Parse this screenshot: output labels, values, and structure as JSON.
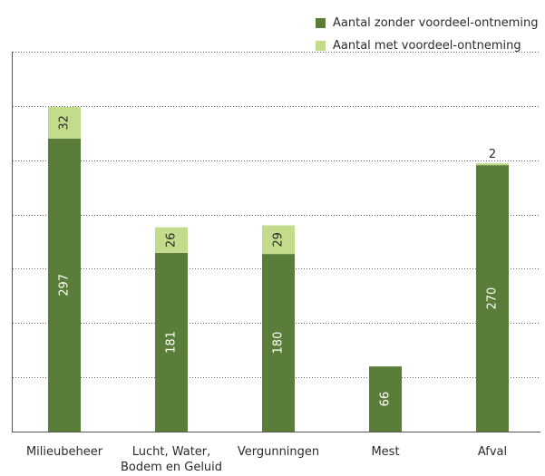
{
  "chart_data": {
    "type": "bar",
    "stacked": true,
    "categories": [
      "Milieubeheer",
      "Lucht, Water, Bodem en Geluid",
      "Vergunningen",
      "Mest",
      "Afval"
    ],
    "category_lines": [
      [
        "Milieubeheer"
      ],
      [
        "Lucht, Water,",
        "Bodem en Geluid"
      ],
      [
        "Vergunningen"
      ],
      [
        "Mest"
      ],
      [
        "Afval"
      ]
    ],
    "series": [
      {
        "name": "Aantal zonder voordeel-ontneming",
        "color": "#5b7d3a",
        "values": [
          297,
          181,
          180,
          66,
          270
        ]
      },
      {
        "name": "Aantal met voordeel-ontneming",
        "color": "#c2dc8c",
        "values": [
          32,
          26,
          29,
          0,
          2
        ]
      }
    ],
    "value_labels": [
      [
        "297",
        "181",
        "180",
        "66",
        "270"
      ],
      [
        "32",
        "26",
        "29",
        "",
        "2"
      ]
    ],
    "ylim": [
      0,
      385
    ],
    "gridline_step": 55,
    "grid": true,
    "legend_position": "top-right",
    "colors": {
      "axis": "#555555",
      "grid": "#666666",
      "text": "#2b2b2b"
    }
  }
}
